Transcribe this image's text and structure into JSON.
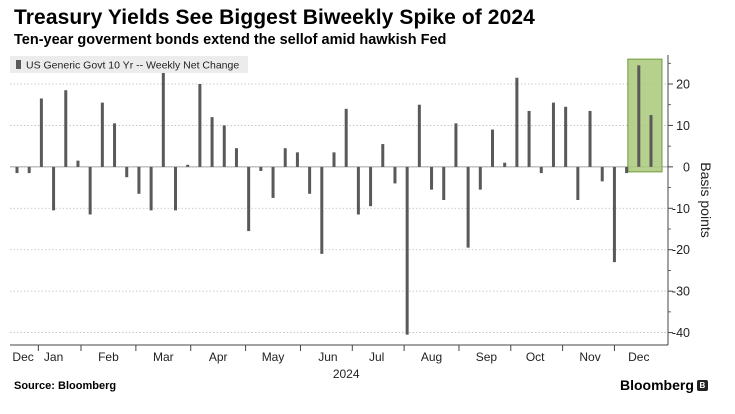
{
  "header": {
    "title": "Treasury Yields See Biggest Biweekly Spike of 2024",
    "subtitle": "Ten-year goverment bonds extend the sellof amid hawkish Fed"
  },
  "footer": {
    "source": "Source: Bloomberg",
    "brand": "Bloomberg",
    "brand_badge": "B"
  },
  "colors": {
    "bar": "#595959",
    "highlight_fill": "#a9c97a",
    "highlight_stroke": "#6f9a3a",
    "grid": "#bdbdbd",
    "legend_bg": "#ececec"
  },
  "chart_data": {
    "type": "bar",
    "title": "Treasury Yields See Biggest Biweekly Spike of 2024",
    "legend": [
      "US Generic Govt 10 Yr -- Weekly Net Change"
    ],
    "ylabel": "Basis points",
    "xlabel": "2024",
    "ylim": [
      -43,
      27
    ],
    "yticks": [
      20,
      10,
      0,
      -10,
      -20,
      -30,
      -40
    ],
    "grid": true,
    "legend_placement": "top-left",
    "month_labels": [
      "Dec",
      "Jan",
      "Feb",
      "Mar",
      "Apr",
      "May",
      "Jun",
      "Jul",
      "Aug",
      "Sep",
      "Oct",
      "Nov",
      "Dec"
    ],
    "month_week_index": [
      0.5,
      3.0,
      7.5,
      12.0,
      16.5,
      21.0,
      25.5,
      29.5,
      34.0,
      38.5,
      42.5,
      47.0,
      51.0
    ],
    "values": [
      -1.5,
      -1.5,
      16.5,
      -10.5,
      18.5,
      1.5,
      -11.5,
      15.5,
      10.5,
      -2.5,
      -6.5,
      -10.5,
      23,
      -10.5,
      0.5,
      20,
      12,
      10,
      4.5,
      -15.5,
      -1,
      -7.5,
      4.5,
      3.5,
      -6.5,
      -21,
      3.5,
      14,
      -11.5,
      -9.5,
      5.5,
      -4,
      -40.5,
      15,
      -5.5,
      -8,
      10.5,
      -19.5,
      -5.5,
      9,
      1,
      21.5,
      13.5,
      -1.5,
      15.5,
      14.5,
      -8,
      13.5,
      -3.5,
      -23,
      -1.5,
      24.5,
      12.5
    ],
    "highlight_range": [
      51,
      52
    ],
    "highlight_label": "Biggest biweekly spike"
  }
}
